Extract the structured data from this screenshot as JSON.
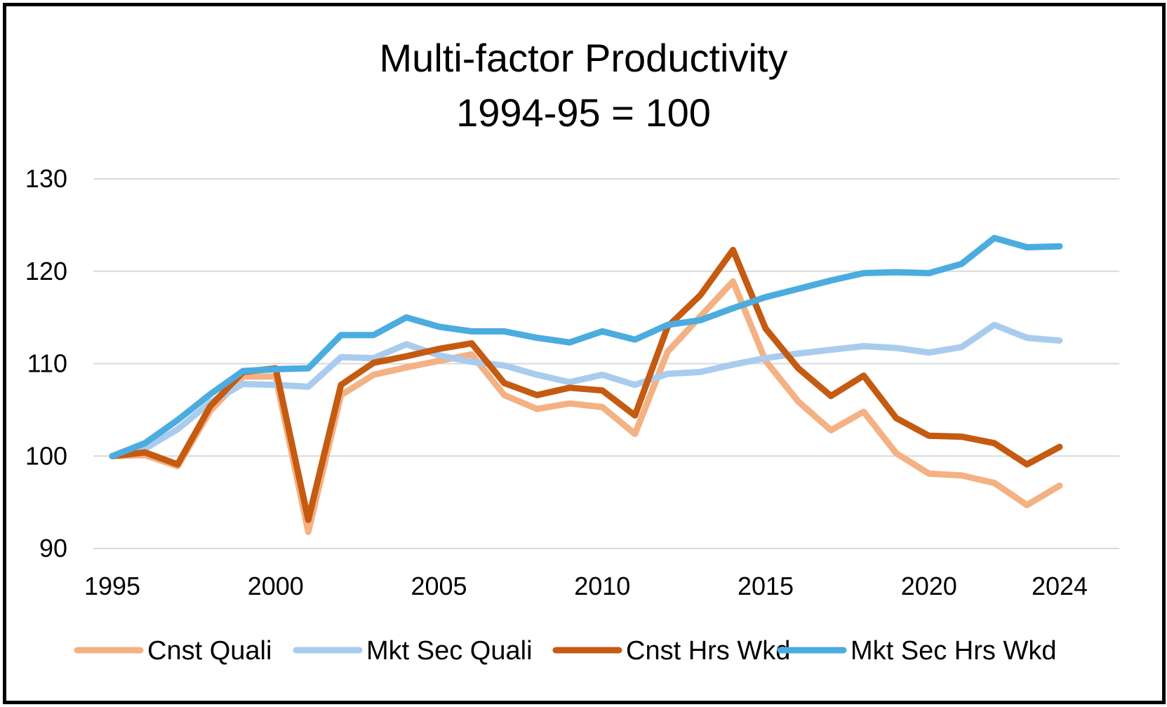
{
  "chart_data": {
    "type": "line",
    "title": "Multi-factor Productivity",
    "subtitle": "1994-95 = 100",
    "xlabel": "",
    "ylabel": "",
    "x": [
      1995,
      1996,
      1997,
      1998,
      1999,
      2000,
      2001,
      2002,
      2003,
      2004,
      2005,
      2006,
      2007,
      2008,
      2009,
      2010,
      2011,
      2012,
      2013,
      2014,
      2015,
      2016,
      2017,
      2018,
      2019,
      2020,
      2021,
      2022,
      2023,
      2024
    ],
    "x_ticks": [
      1995,
      2000,
      2005,
      2010,
      2015,
      2020,
      2024
    ],
    "x_tick_labels": [
      "1995",
      "2000",
      "2005",
      "2010",
      "2015",
      "2020",
      "2024"
    ],
    "ylim": [
      90,
      130
    ],
    "y_ticks": [
      90,
      100,
      110,
      120,
      130
    ],
    "y_tick_labels": [
      "90",
      "100",
      "110",
      "120",
      "130"
    ],
    "grid": "horizontal",
    "legend_position": "bottom",
    "series": [
      {
        "name": "Cnst Quali",
        "color": "#F4B183",
        "values": [
          100.0,
          100.1,
          98.9,
          104.9,
          108.6,
          108.6,
          91.8,
          106.6,
          108.8,
          109.6,
          110.3,
          111.0,
          106.6,
          105.1,
          105.7,
          105.3,
          102.4,
          111.3,
          115.1,
          118.9,
          110.3,
          105.9,
          102.8,
          104.8,
          100.3,
          98.1,
          97.9,
          97.1,
          94.7,
          96.8
        ]
      },
      {
        "name": "Mkt Sec Quali",
        "color": "#A9CCEE",
        "values": [
          100.0,
          100.8,
          102.9,
          105.8,
          107.8,
          107.7,
          107.5,
          110.7,
          110.6,
          112.1,
          110.9,
          110.2,
          109.8,
          108.8,
          108.0,
          108.8,
          107.7,
          108.9,
          109.1,
          109.9,
          110.6,
          111.1,
          111.5,
          111.9,
          111.7,
          111.2,
          111.8,
          114.2,
          112.8,
          112.5
        ]
      },
      {
        "name": "Cnst Hrs Wkd",
        "color": "#C55A11",
        "values": [
          100.0,
          100.4,
          99.1,
          105.4,
          109.1,
          109.5,
          93.1,
          107.7,
          110.1,
          110.8,
          111.6,
          112.2,
          107.9,
          106.6,
          107.4,
          107.1,
          104.4,
          114.0,
          117.4,
          122.3,
          113.8,
          109.5,
          106.5,
          108.7,
          104.1,
          102.2,
          102.1,
          101.4,
          99.1,
          101.0
        ]
      },
      {
        "name": "Mkt Sec Hrs Wkd",
        "color": "#4BACDF",
        "values": [
          100.0,
          101.4,
          103.9,
          106.7,
          109.2,
          109.4,
          109.5,
          113.1,
          113.1,
          115.0,
          114.0,
          113.5,
          113.5,
          112.8,
          112.3,
          113.5,
          112.6,
          114.2,
          114.7,
          116.0,
          117.2,
          118.1,
          119.0,
          119.8,
          119.9,
          119.8,
          120.8,
          123.6,
          122.6,
          122.7
        ]
      }
    ]
  }
}
